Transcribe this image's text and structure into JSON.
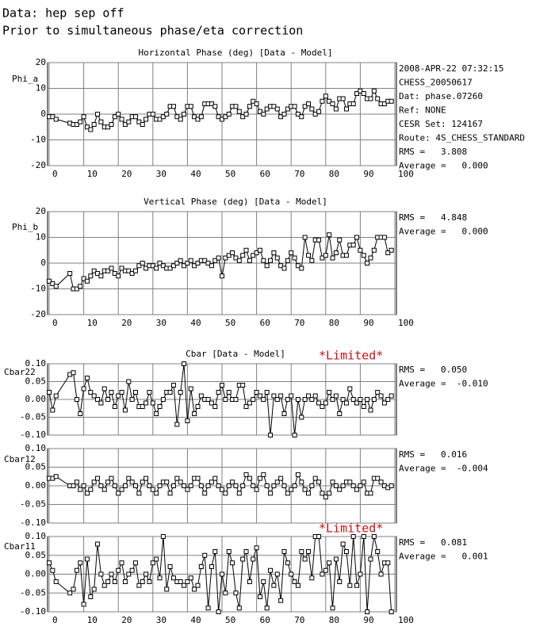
{
  "header": [
    "Data: hep sep off",
    "Prior to simultaneous phase/eta correction"
  ],
  "chart_data": [
    {
      "type": "line",
      "title": "Horizontal Phase (deg) [Data - Model]",
      "ylabel": "Phi_a",
      "color": "#000000",
      "info": [
        "2008-APR-22 07:32:15",
        "CHESS_20050617",
        "Dat: phase.07260",
        "Ref: NONE",
        "CESR Set: 124167",
        "Route: 4S_CHESS_STANDARD"
      ],
      "stats": [
        "RMS =   3.808",
        "Average =   0.000"
      ],
      "xlim": [
        0,
        100
      ],
      "xticks": [
        0,
        10,
        20,
        30,
        40,
        50,
        60,
        70,
        80,
        90,
        100
      ],
      "xtick_labels": true,
      "ylim": [
        -20,
        20
      ],
      "yticks": [
        -20,
        -10,
        0,
        10,
        20
      ],
      "grid": true,
      "x": [
        0,
        1,
        2,
        6,
        7,
        8,
        9,
        10,
        11,
        12,
        13,
        14,
        15,
        16,
        17,
        18,
        19,
        20,
        21,
        22,
        23,
        24,
        25,
        26,
        27,
        28,
        29,
        30,
        31,
        32,
        33,
        34,
        35,
        36,
        37,
        38,
        39,
        40,
        41,
        42,
        43,
        44,
        45,
        46,
        47,
        48,
        49,
        50,
        51,
        52,
        53,
        54,
        55,
        56,
        57,
        58,
        59,
        60,
        61,
        62,
        63,
        64,
        65,
        66,
        67,
        68,
        69,
        70,
        71,
        72,
        73,
        74,
        75,
        76,
        77,
        78,
        79,
        80,
        81,
        82,
        83,
        84,
        85,
        86,
        87,
        88,
        89,
        90,
        91,
        92,
        93,
        94,
        95,
        96,
        97,
        98,
        99
      ],
      "values": [
        -1,
        -1,
        -2,
        -3.5,
        -4,
        -4,
        -3,
        -1,
        -5,
        -6,
        -4,
        0,
        -3,
        -5,
        -5,
        -4,
        -1,
        0,
        -2,
        -4,
        -3,
        -1,
        -1,
        -3,
        -4,
        -2,
        0,
        0,
        -2,
        -2,
        -1,
        0,
        3,
        3,
        -1,
        -2,
        0,
        3,
        3,
        -1,
        -2,
        -1,
        4,
        4,
        4,
        3,
        -1,
        -2,
        -1,
        0,
        3,
        3,
        1,
        -1,
        0,
        3,
        5,
        4,
        1,
        0,
        2,
        3,
        3,
        2,
        -1,
        0,
        2,
        3,
        3,
        0,
        -1,
        3,
        4,
        2,
        0,
        1,
        5,
        7,
        5,
        4,
        2,
        6,
        6,
        2,
        4,
        4,
        8,
        9,
        8,
        6,
        6,
        9,
        6,
        4,
        4,
        5,
        5
      ]
    },
    {
      "type": "line",
      "title": "Vertical Phase (deg) [Data - Model]",
      "ylabel": "Phi_b",
      "color": "#000000",
      "stats": [
        "RMS =   4.848",
        "Average =   0.000"
      ],
      "xlim": [
        0,
        100
      ],
      "xticks": [
        0,
        10,
        20,
        30,
        40,
        50,
        60,
        70,
        80,
        90,
        100
      ],
      "xtick_labels": true,
      "ylim": [
        -20,
        20
      ],
      "yticks": [
        -20,
        -10,
        0,
        10,
        20
      ],
      "grid": true,
      "x": [
        0,
        1,
        2,
        6,
        7,
        8,
        9,
        10,
        11,
        12,
        13,
        14,
        15,
        16,
        17,
        18,
        19,
        20,
        21,
        22,
        23,
        24,
        25,
        26,
        27,
        28,
        29,
        30,
        31,
        32,
        33,
        34,
        35,
        36,
        37,
        38,
        39,
        40,
        41,
        42,
        43,
        44,
        45,
        46,
        47,
        48,
        49,
        50,
        51,
        52,
        53,
        54,
        55,
        56,
        57,
        58,
        59,
        60,
        61,
        62,
        63,
        64,
        65,
        66,
        67,
        68,
        69,
        70,
        71,
        72,
        73,
        74,
        75,
        76,
        77,
        78,
        79,
        80,
        81,
        82,
        83,
        84,
        85,
        86,
        87,
        88,
        89,
        90,
        91,
        92,
        93,
        94,
        95,
        96,
        97,
        98,
        99
      ],
      "values": [
        -7,
        -8,
        -9,
        -4,
        -10,
        -10,
        -9,
        -6,
        -7,
        -5,
        -3,
        -4,
        -5,
        -3,
        -3,
        -2,
        -4,
        -5,
        -2,
        -3,
        -3,
        -4,
        -3,
        -1,
        0,
        -2,
        -1,
        -1,
        -2,
        0,
        -1,
        -2,
        -2,
        -1,
        0,
        1,
        -1,
        0,
        1,
        -1,
        0,
        1,
        1,
        0,
        -1,
        1,
        2,
        -5,
        2,
        3,
        4,
        2,
        1,
        3,
        5,
        1,
        3,
        4,
        5,
        1,
        -1,
        1,
        4,
        2,
        -1,
        -2,
        1,
        4,
        2,
        -1,
        -2,
        10,
        3,
        1,
        9,
        9,
        2,
        3,
        11,
        2,
        4,
        9,
        3,
        3,
        7,
        7,
        10,
        5,
        3,
        0,
        2,
        5,
        10,
        10,
        10,
        4,
        5
      ]
    },
    {
      "type": "line",
      "title": "Cbar [Data - Model]",
      "annotation": "*Limited*",
      "ylabel": "Cbar22",
      "color": "#000000",
      "stats": [
        "RMS =   0.050",
        "Average =  -0.010"
      ],
      "xlim": [
        0,
        100
      ],
      "xticks": [
        0,
        10,
        20,
        30,
        40,
        50,
        60,
        70,
        80,
        90,
        100
      ],
      "xtick_labels": false,
      "ylim": [
        -0.1,
        0.1
      ],
      "yticks": [
        {
          "value": -0.1,
          "label": "-0.10"
        },
        {
          "value": -0.05,
          "label": "-0.05"
        },
        {
          "value": 0,
          "label": "0.00"
        },
        {
          "value": 0.05,
          "label": "0.05"
        },
        {
          "value": 0.1,
          "label": "0.10"
        }
      ],
      "grid": true,
      "x": [
        0,
        1,
        2,
        6,
        7,
        8,
        9,
        10,
        11,
        12,
        13,
        14,
        15,
        16,
        17,
        18,
        19,
        20,
        21,
        22,
        23,
        24,
        25,
        26,
        27,
        28,
        29,
        30,
        31,
        32,
        33,
        34,
        35,
        36,
        37,
        38,
        39,
        40,
        41,
        42,
        43,
        44,
        45,
        46,
        47,
        48,
        49,
        50,
        51,
        52,
        53,
        54,
        55,
        56,
        57,
        58,
        59,
        60,
        61,
        62,
        63,
        64,
        65,
        66,
        67,
        68,
        69,
        70,
        71,
        72,
        73,
        74,
        75,
        76,
        77,
        78,
        79,
        80,
        81,
        82,
        83,
        84,
        85,
        86,
        87,
        88,
        89,
        90,
        91,
        92,
        93,
        94,
        95,
        96,
        97,
        98,
        99
      ],
      "values": [
        0.02,
        -0.03,
        0.01,
        0.07,
        0.075,
        0,
        -0.04,
        0.03,
        0.06,
        0.02,
        0.01,
        0,
        -0.01,
        0.03,
        0,
        0.02,
        -0.02,
        0.01,
        0.02,
        -0.03,
        0.05,
        0,
        0.02,
        -0.02,
        -0.02,
        -0.01,
        0.02,
        -0.01,
        -0.04,
        -0.02,
        0,
        0.02,
        0.02,
        0.04,
        -0.07,
        0.02,
        0.1,
        -0.06,
        0.03,
        -0.04,
        -0.02,
        0.01,
        0,
        0,
        -0.01,
        -0.02,
        0.02,
        0.04,
        0,
        0.02,
        0,
        0,
        0.04,
        0.04,
        -0.02,
        -0.01,
        0,
        0.02,
        0.01,
        0,
        0.02,
        -0.1,
        0.01,
        0,
        0.01,
        -0.04,
        0,
        0.01,
        -0.1,
        0,
        -0.05,
        0,
        0.01,
        0,
        0.01,
        -0.01,
        -0.02,
        -0.01,
        0.02,
        0,
        0.01,
        -0.04,
        0,
        -0.01,
        0.03,
        0,
        -0.01,
        0,
        -0.02,
        0,
        -0.03,
        0,
        0.02,
        0.01,
        -0.01,
        0,
        0.01
      ]
    },
    {
      "type": "line",
      "ylabel": "Cbar12",
      "color": "#000000",
      "stats": [
        "RMS =   0.016",
        "Average =  -0.004"
      ],
      "xlim": [
        0,
        100
      ],
      "xticks": [
        0,
        10,
        20,
        30,
        40,
        50,
        60,
        70,
        80,
        90,
        100
      ],
      "xtick_labels": false,
      "ylim": [
        -0.1,
        0.1
      ],
      "yticks": [
        {
          "value": -0.1,
          "label": "-0.10"
        },
        {
          "value": -0.05,
          "label": "-0.05"
        },
        {
          "value": 0,
          "label": "0.00"
        },
        {
          "value": 0.05,
          "label": "0.05"
        },
        {
          "value": 0.1,
          "label": "0.10"
        }
      ],
      "grid": true,
      "x": [
        0,
        1,
        2,
        6,
        7,
        8,
        9,
        10,
        11,
        12,
        13,
        14,
        15,
        16,
        17,
        18,
        19,
        20,
        21,
        22,
        23,
        24,
        25,
        26,
        27,
        28,
        29,
        30,
        31,
        32,
        33,
        34,
        35,
        36,
        37,
        38,
        39,
        40,
        41,
        42,
        43,
        44,
        45,
        46,
        47,
        48,
        49,
        50,
        51,
        52,
        53,
        54,
        55,
        56,
        57,
        58,
        59,
        60,
        61,
        62,
        63,
        64,
        65,
        66,
        67,
        68,
        69,
        70,
        71,
        72,
        73,
        74,
        75,
        76,
        77,
        78,
        79,
        80,
        81,
        82,
        83,
        84,
        85,
        86,
        87,
        88,
        89,
        90,
        91,
        92,
        93,
        94,
        95,
        96,
        97,
        98,
        99
      ],
      "values": [
        0.02,
        0.02,
        0.025,
        0,
        0,
        0.01,
        -0.01,
        0,
        -0.02,
        -0.01,
        0.01,
        0.02,
        0,
        -0.01,
        0.01,
        0.02,
        0,
        -0.02,
        -0.01,
        0,
        0.02,
        0.01,
        0,
        -0.02,
        0.01,
        0.02,
        0,
        -0.01,
        -0.02,
        0,
        0.01,
        0.01,
        -0.02,
        0,
        0.02,
        0.01,
        0,
        -0.01,
        0,
        0.02,
        0.02,
        0,
        -0.02,
        0,
        0.01,
        0.02,
        0,
        -0.01,
        -0.02,
        0,
        0.01,
        0,
        -0.02,
        0,
        0.03,
        0.02,
        0,
        -0.01,
        0.02,
        0.03,
        0,
        -0.02,
        0,
        0.01,
        0.02,
        0,
        -0.02,
        -0.01,
        0,
        0.03,
        0.01,
        -0.01,
        -0.02,
        0,
        0.02,
        0.01,
        -0.02,
        -0.03,
        -0.02,
        0.01,
        0,
        -0.01,
        0,
        0.01,
        0.01,
        0,
        -0.01,
        0,
        0.01,
        -0.02,
        -0.02,
        0.02,
        0.02,
        0.01,
        0,
        -0.005,
        0
      ]
    },
    {
      "type": "line",
      "annotation": "*Limited*",
      "ylabel": "Cbar11",
      "color": "#000000",
      "stats": [
        "RMS =   0.081",
        "Average =   0.001"
      ],
      "xlim": [
        0,
        100
      ],
      "xticks": [
        0,
        10,
        20,
        30,
        40,
        50,
        60,
        70,
        80,
        90,
        100
      ],
      "xtick_labels": true,
      "ylim": [
        -0.1,
        0.1
      ],
      "yticks": [
        {
          "value": -0.1,
          "label": "-0.10"
        },
        {
          "value": -0.05,
          "label": "-0.05"
        },
        {
          "value": 0,
          "label": "0.00"
        },
        {
          "value": 0.05,
          "label": "0.05"
        },
        {
          "value": 0.1,
          "label": "0.10"
        }
      ],
      "grid": true,
      "x": [
        0,
        1,
        2,
        6,
        7,
        8,
        9,
        10,
        11,
        12,
        13,
        14,
        15,
        16,
        17,
        18,
        19,
        20,
        21,
        22,
        23,
        24,
        25,
        26,
        27,
        28,
        29,
        30,
        31,
        32,
        33,
        34,
        35,
        36,
        37,
        38,
        39,
        40,
        41,
        42,
        43,
        44,
        45,
        46,
        47,
        48,
        49,
        50,
        51,
        52,
        53,
        54,
        55,
        56,
        57,
        58,
        59,
        60,
        61,
        62,
        63,
        64,
        65,
        66,
        67,
        68,
        69,
        70,
        71,
        72,
        73,
        74,
        75,
        76,
        77,
        78,
        79,
        80,
        81,
        82,
        83,
        84,
        85,
        86,
        87,
        88,
        89,
        90,
        91,
        92,
        93,
        94,
        95,
        96,
        97,
        98,
        99
      ],
      "values": [
        0.03,
        0.01,
        -0.02,
        -0.05,
        -0.04,
        0.01,
        0.03,
        -0.08,
        0.04,
        -0.06,
        -0.04,
        0.08,
        0,
        -0.03,
        -0.02,
        0,
        -0.02,
        0.01,
        0.03,
        -0.02,
        0,
        0.01,
        0.03,
        -0.03,
        -0.02,
        0,
        -0.02,
        0.03,
        0.04,
        -0.01,
        0.1,
        -0.04,
        0.02,
        -0.01,
        -0.02,
        -0.02,
        -0.03,
        -0.02,
        -0.01,
        -0.04,
        -0.03,
        0.02,
        0.05,
        -0.09,
        0.02,
        0.06,
        -0.1,
        0,
        -0.05,
        0.06,
        0.03,
        -0.05,
        -0.09,
        0.04,
        0.06,
        -0.02,
        0.04,
        0.07,
        -0.06,
        -0.02,
        -0.09,
        0.01,
        -0.03,
        0,
        -0.07,
        0.06,
        0.03,
        0,
        -0.02,
        -0.03,
        0.06,
        0.04,
        0.06,
        -0.01,
        0.1,
        0.1,
        0,
        0.01,
        0.03,
        -0.09,
        0.04,
        -0.02,
        0.08,
        0.06,
        -0.03,
        0.1,
        -0.03,
        0,
        0.1,
        -0.1,
        0.04,
        0.1,
        0.06,
        0,
        0.03,
        0.03,
        -0.1
      ]
    }
  ]
}
